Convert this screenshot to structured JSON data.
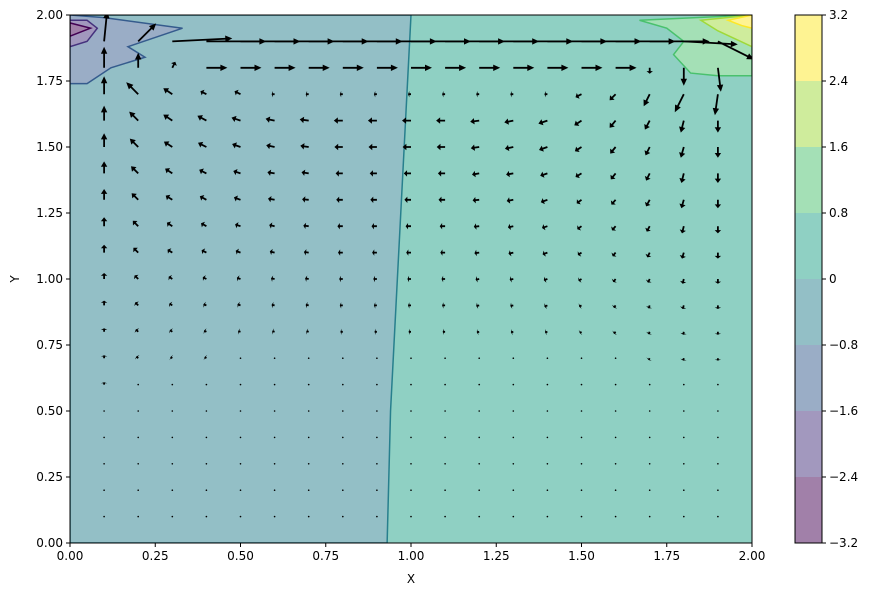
{
  "chart_data": {
    "type": "contour",
    "xlabel": "X",
    "ylabel": "Y",
    "xlim": [
      0,
      2
    ],
    "ylim": [
      0,
      2
    ],
    "xticks": [
      {
        "value": 0,
        "label": "0.00"
      },
      {
        "value": 0.25,
        "label": "0.25"
      },
      {
        "value": 0.5,
        "label": "0.50"
      },
      {
        "value": 0.75,
        "label": "0.75"
      },
      {
        "value": 1,
        "label": "1.00"
      },
      {
        "value": 1.25,
        "label": "1.25"
      },
      {
        "value": 1.5,
        "label": "1.50"
      },
      {
        "value": 1.75,
        "label": "1.75"
      },
      {
        "value": 2,
        "label": "2.00"
      }
    ],
    "yticks": [
      {
        "value": 0,
        "label": "0.00"
      },
      {
        "value": 0.25,
        "label": "0.25"
      },
      {
        "value": 0.5,
        "label": "0.50"
      },
      {
        "value": 0.75,
        "label": "0.75"
      },
      {
        "value": 1,
        "label": "1.00"
      },
      {
        "value": 1.25,
        "label": "1.25"
      },
      {
        "value": 1.5,
        "label": "1.50"
      },
      {
        "value": 1.75,
        "label": "1.75"
      },
      {
        "value": 2,
        "label": "2.00"
      }
    ],
    "levels": [
      {
        "value": -3.2,
        "label": "−3.2"
      },
      {
        "value": -2.4,
        "label": "−2.4"
      },
      {
        "value": -1.6,
        "label": "−1.6"
      },
      {
        "value": -0.8,
        "label": "−0.8"
      },
      0,
      0.8,
      1.6,
      2.4,
      3.2
    ],
    "band_colors": [
      "#a180a9",
      "#a298be",
      "#9aadc6",
      "#93bfc6",
      "#8fd0c3",
      "#a4e0b6",
      "#cfec9c",
      "#fef392"
    ],
    "regions": [
      {
        "band": 4,
        "points": [
          [
            0,
            0
          ],
          [
            2,
            0
          ],
          [
            2,
            2
          ],
          [
            0,
            2
          ]
        ]
      },
      {
        "band": 3,
        "points": [
          [
            0,
            0
          ],
          [
            0.93,
            0
          ],
          [
            0.94,
            0.5
          ],
          [
            0.96,
            1.0
          ],
          [
            0.98,
            1.5
          ],
          [
            1.0,
            2.0
          ],
          [
            0,
            2.0
          ]
        ]
      },
      {
        "band": 2,
        "points": [
          [
            0,
            1.74
          ],
          [
            0.05,
            1.74
          ],
          [
            0.12,
            1.8
          ],
          [
            0.22,
            1.84
          ],
          [
            0.17,
            1.88
          ],
          [
            0.33,
            1.95
          ],
          [
            0.1,
            1.99
          ],
          [
            0,
            2.0
          ]
        ]
      },
      {
        "band": 1,
        "points": [
          [
            0,
            1.88
          ],
          [
            0.05,
            1.9
          ],
          [
            0.08,
            1.95
          ],
          [
            0.05,
            1.98
          ],
          [
            0,
            1.98
          ]
        ]
      },
      {
        "band": 0,
        "points": [
          [
            0,
            1.92
          ],
          [
            0.06,
            1.95
          ],
          [
            0,
            1.97
          ]
        ]
      },
      {
        "band": 5,
        "points": [
          [
            1.67,
            1.98
          ],
          [
            1.75,
            1.95
          ],
          [
            1.8,
            1.9
          ],
          [
            1.77,
            1.85
          ],
          [
            1.82,
            1.78
          ],
          [
            1.9,
            1.77
          ],
          [
            2,
            1.77
          ],
          [
            2,
            2.0
          ]
        ]
      },
      {
        "band": 6,
        "points": [
          [
            1.85,
            1.98
          ],
          [
            1.9,
            1.94
          ],
          [
            2,
            1.88
          ],
          [
            2,
            2
          ]
        ]
      },
      {
        "band": 7,
        "points": [
          [
            1.93,
            1.98
          ],
          [
            1.97,
            1.96
          ],
          [
            2,
            1.95
          ],
          [
            2,
            2
          ]
        ]
      }
    ],
    "quiver": {
      "color": "#000000",
      "x": [
        0.1,
        0.2,
        0.3,
        0.4,
        0.5,
        0.6,
        0.7,
        0.8,
        0.9,
        1.0,
        1.1,
        1.2,
        1.3,
        1.4,
        1.5,
        1.6,
        1.7,
        1.8,
        1.9
      ],
      "y": [
        0.1,
        0.2,
        0.3,
        0.4,
        0.5,
        0.6,
        0.7,
        0.8,
        0.9,
        1.0,
        1.1,
        1.2,
        1.3,
        1.4,
        1.5,
        1.6,
        1.7,
        1.8,
        1.9
      ],
      "u": [
        [
          0,
          -0.01,
          -0.01,
          -0.01,
          -0.01,
          -0.01,
          -0.01,
          -0.01,
          -0.01,
          -0.01,
          -0.01,
          -0.01,
          -0.01,
          -0.01,
          0,
          0,
          0,
          0,
          0
        ],
        [
          0,
          -0.01,
          -0.01,
          -0.01,
          -0.01,
          -0.01,
          -0.01,
          -0.01,
          -0.01,
          -0.01,
          -0.01,
          -0.01,
          -0.01,
          -0.01,
          -0.01,
          -0.01,
          0,
          0,
          0
        ],
        [
          0,
          -0.01,
          -0.01,
          -0.01,
          -0.01,
          -0.01,
          -0.01,
          -0.01,
          -0.01,
          -0.01,
          -0.01,
          -0.01,
          -0.01,
          -0.01,
          -0.01,
          -0.01,
          0,
          0,
          0
        ],
        [
          0,
          -0.02,
          -0.02,
          -0.02,
          -0.02,
          -0.02,
          -0.02,
          -0.02,
          -0.02,
          -0.02,
          -0.02,
          -0.02,
          -0.02,
          -0.02,
          -0.01,
          -0.01,
          -0.01,
          -0.01,
          0
        ],
        [
          0,
          -0.02,
          -0.02,
          -0.02,
          -0.02,
          -0.02,
          -0.02,
          -0.02,
          -0.02,
          -0.02,
          -0.02,
          -0.02,
          -0.02,
          -0.02,
          -0.01,
          -0.01,
          -0.01,
          -0.01,
          0
        ],
        [
          0,
          -0.02,
          -0.02,
          -0.02,
          -0.02,
          -0.02,
          -0.02,
          -0.02,
          -0.02,
          -0.02,
          -0.02,
          -0.02,
          -0.02,
          -0.02,
          -0.02,
          -0.02,
          -0.01,
          -0.01,
          0
        ],
        [
          0,
          -0.03,
          -0.03,
          -0.03,
          -0.03,
          -0.03,
          -0.03,
          -0.03,
          -0.03,
          -0.03,
          -0.03,
          -0.03,
          -0.03,
          -0.03,
          -0.02,
          -0.02,
          -0.02,
          -0.01,
          0
        ],
        [
          0,
          -0.04,
          -0.04,
          -0.04,
          -0.04,
          -0.04,
          -0.04,
          -0.04,
          -0.04,
          -0.04,
          -0.04,
          -0.04,
          -0.04,
          -0.04,
          -0.03,
          -0.03,
          -0.02,
          -0.01,
          0
        ],
        [
          0,
          -0.05,
          -0.05,
          -0.05,
          -0.05,
          -0.05,
          -0.05,
          -0.05,
          -0.05,
          -0.05,
          -0.05,
          -0.05,
          -0.05,
          -0.05,
          -0.04,
          -0.03,
          -0.02,
          -0.02,
          0
        ],
        [
          0,
          -0.06,
          -0.06,
          -0.06,
          -0.06,
          -0.06,
          -0.06,
          -0.06,
          -0.06,
          -0.06,
          -0.06,
          -0.06,
          -0.06,
          -0.06,
          -0.05,
          -0.04,
          -0.03,
          -0.02,
          0
        ],
        [
          0,
          -0.08,
          -0.08,
          -0.08,
          -0.08,
          -0.08,
          -0.08,
          -0.08,
          -0.08,
          -0.08,
          -0.08,
          -0.08,
          -0.08,
          -0.08,
          -0.06,
          -0.05,
          -0.04,
          -0.03,
          0
        ],
        [
          0,
          -0.09,
          -0.09,
          -0.09,
          -0.09,
          -0.09,
          -0.09,
          -0.09,
          -0.09,
          -0.09,
          -0.09,
          -0.09,
          -0.09,
          -0.09,
          -0.07,
          -0.06,
          -0.05,
          -0.03,
          0
        ],
        [
          0,
          -0.11,
          -0.11,
          -0.11,
          -0.11,
          -0.11,
          -0.11,
          -0.11,
          -0.11,
          -0.11,
          -0.11,
          -0.11,
          -0.11,
          -0.11,
          -0.08,
          -0.07,
          -0.06,
          -0.04,
          0
        ],
        [
          0,
          -0.12,
          -0.12,
          -0.12,
          -0.12,
          -0.12,
          -0.12,
          -0.12,
          -0.12,
          -0.12,
          -0.12,
          -0.12,
          -0.12,
          -0.12,
          -0.1,
          -0.08,
          -0.06,
          -0.04,
          0
        ],
        [
          0,
          -0.14,
          -0.14,
          -0.14,
          -0.14,
          -0.14,
          -0.14,
          -0.14,
          -0.14,
          -0.14,
          -0.14,
          -0.14,
          -0.14,
          -0.14,
          -0.11,
          -0.09,
          -0.07,
          -0.05,
          0
        ],
        [
          0,
          -0.15,
          -0.15,
          -0.15,
          -0.15,
          -0.15,
          -0.15,
          -0.15,
          -0.15,
          -0.15,
          -0.15,
          -0.15,
          -0.15,
          -0.15,
          -0.12,
          -0.1,
          -0.08,
          -0.05,
          0
        ],
        [
          0,
          -0.2,
          -0.15,
          -0.1,
          -0.1,
          -0.05,
          -0.05,
          -0.05,
          -0.05,
          -0.05,
          -0.05,
          -0.05,
          -0.05,
          -0.05,
          -0.1,
          -0.1,
          -0.1,
          -0.15,
          -0.05
        ],
        [
          0,
          0,
          0.05,
          0.35,
          0.35,
          0.35,
          0.35,
          0.35,
          0.35,
          0.35,
          0.35,
          0.35,
          0.35,
          0.35,
          0.35,
          0.35,
          0,
          0,
          0.05
        ],
        [
          0.05,
          0.3,
          1.0,
          1.0,
          1.0,
          1.0,
          1.0,
          1.0,
          1.0,
          1.0,
          1.0,
          1.0,
          1.0,
          1.0,
          1.0,
          1.0,
          1.0,
          0.9,
          0.6
        ]
      ],
      "v": [
        [
          0.01,
          0.01,
          0,
          0,
          0,
          0,
          0,
          0,
          0,
          0,
          0,
          0,
          0,
          0,
          0,
          0,
          -0.01,
          -0.01,
          -0.01
        ],
        [
          0.02,
          0.01,
          0.01,
          0,
          0,
          0,
          0,
          0,
          0,
          0,
          0,
          0,
          0,
          0,
          0,
          -0.01,
          -0.01,
          -0.01,
          -0.01
        ],
        [
          0.02,
          0.01,
          0.01,
          0.01,
          0,
          0,
          0,
          0,
          0,
          0,
          0,
          0,
          0,
          0,
          -0.01,
          -0.01,
          -0.01,
          -0.02,
          -0.02
        ],
        [
          0.03,
          0.02,
          0.01,
          0.01,
          0.01,
          0,
          0,
          0,
          0,
          0,
          0,
          0,
          0,
          -0.01,
          -0.01,
          -0.01,
          -0.02,
          -0.02,
          -0.02
        ],
        [
          0.03,
          0.02,
          0.01,
          0.01,
          0.01,
          0,
          0,
          0,
          0,
          0,
          0,
          0,
          0,
          -0.01,
          -0.01,
          -0.01,
          -0.02,
          -0.02,
          -0.02
        ],
        [
          0.04,
          0.02,
          0.02,
          0.01,
          0.01,
          0,
          0,
          0,
          0,
          0,
          0,
          0,
          0,
          -0.01,
          -0.01,
          -0.02,
          -0.02,
          -0.03,
          -0.03
        ],
        [
          0.05,
          0.03,
          0.02,
          0.02,
          0.01,
          0.01,
          0,
          0,
          0,
          0,
          0,
          0,
          -0.01,
          -0.01,
          -0.02,
          -0.02,
          -0.03,
          -0.04,
          -0.04
        ],
        [
          0.06,
          0.04,
          0.03,
          0.02,
          0.01,
          0.01,
          0.01,
          0,
          0,
          0,
          0,
          -0.01,
          -0.01,
          -0.01,
          -0.02,
          -0.03,
          -0.04,
          -0.05,
          -0.05
        ],
        [
          0.08,
          0.05,
          0.03,
          0.02,
          0.02,
          0.01,
          0.01,
          0,
          0,
          0,
          0,
          -0.01,
          -0.01,
          -0.02,
          -0.02,
          -0.04,
          -0.05,
          -0.06,
          -0.06
        ],
        [
          0.1,
          0.06,
          0.04,
          0.03,
          0.02,
          0.01,
          0.01,
          0,
          0,
          0,
          0,
          -0.01,
          -0.01,
          -0.02,
          -0.03,
          -0.05,
          -0.06,
          -0.08,
          -0.08
        ],
        [
          0.13,
          0.08,
          0.05,
          0.04,
          0.03,
          0.02,
          0.01,
          0,
          0,
          0,
          0,
          -0.01,
          -0.02,
          -0.03,
          -0.04,
          -0.06,
          -0.08,
          -0.1,
          -0.1
        ],
        [
          0.15,
          0.09,
          0.06,
          0.05,
          0.03,
          0.02,
          0.01,
          0,
          0,
          0,
          0,
          -0.01,
          -0.02,
          -0.03,
          -0.05,
          -0.07,
          -0.09,
          -0.12,
          -0.12
        ],
        [
          0.18,
          0.11,
          0.07,
          0.06,
          0.04,
          0.02,
          0.01,
          0,
          0,
          0,
          0,
          -0.01,
          -0.02,
          -0.04,
          -0.06,
          -0.08,
          -0.11,
          -0.14,
          -0.14
        ],
        [
          0.2,
          0.12,
          0.08,
          0.06,
          0.04,
          0.02,
          0.02,
          0,
          0,
          0,
          0,
          -0.02,
          -0.02,
          -0.04,
          -0.06,
          -0.1,
          -0.12,
          -0.16,
          -0.16
        ],
        [
          0.23,
          0.14,
          0.09,
          0.07,
          0.05,
          0.03,
          0.02,
          0,
          0,
          0,
          0,
          -0.02,
          -0.03,
          -0.05,
          -0.07,
          -0.11,
          -0.14,
          -0.18,
          -0.18
        ],
        [
          0.25,
          0.15,
          0.1,
          0.08,
          0.05,
          0.03,
          0.02,
          0,
          0,
          0,
          0,
          -0.02,
          -0.03,
          -0.05,
          -0.08,
          -0.12,
          -0.15,
          -0.2,
          -0.2
        ],
        [
          0.3,
          0.2,
          0.1,
          0.05,
          0.05,
          0,
          0,
          0,
          0,
          0,
          0,
          0,
          0,
          0,
          -0.05,
          -0.1,
          -0.2,
          -0.3,
          -0.35
        ],
        [
          0.35,
          0.25,
          0.1,
          0,
          0,
          0,
          0,
          0,
          0,
          0,
          0,
          0,
          0,
          0,
          0,
          0,
          -0.1,
          -0.3,
          -0.4
        ],
        [
          0.5,
          0.3,
          0.05,
          0,
          0,
          0,
          0,
          0,
          0,
          0,
          0,
          0,
          0,
          0,
          0,
          0,
          0,
          -0.05,
          -0.3
        ]
      ]
    }
  }
}
